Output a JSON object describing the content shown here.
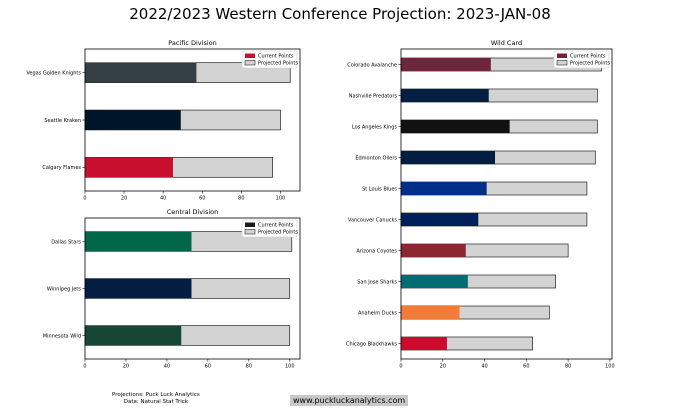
{
  "title": "2022/2023 Western Conference Projection: 2023-JAN-08",
  "footer": {
    "line1": "Projections: Puck Luck Analytics",
    "line2": "Data: Natural Stat Trick"
  },
  "site_label": "www.puckluckanalytics.com",
  "legend": {
    "current": "Current Points",
    "projected": "Projected Points"
  },
  "projected_color": "#d3d3d3",
  "chart_data": [
    {
      "type": "bar",
      "orientation": "horizontal",
      "title": "Pacific Division",
      "xlim": [
        0,
        110
      ],
      "xticks": [
        0,
        20,
        40,
        60,
        80,
        100
      ],
      "legend_position": "top-right",
      "legend_current_color": "#c8102e",
      "categories": [
        "Vegas Golden Knights",
        "Seattle Kraken",
        "Calgary Flames"
      ],
      "series": [
        {
          "name": "Current Points",
          "values": [
            57,
            49,
            45
          ],
          "colors": [
            "#333f42",
            "#001628",
            "#c8102e"
          ]
        },
        {
          "name": "Projected Points",
          "values": [
            105,
            100,
            96
          ]
        }
      ]
    },
    {
      "type": "bar",
      "orientation": "horizontal",
      "title": "Central Division",
      "xlim": [
        0,
        105
      ],
      "xticks": [
        0,
        20,
        40,
        60,
        80,
        100
      ],
      "legend_position": "top-right",
      "legend_current_color": "#1b1b1b",
      "categories": [
        "Dallas Stars",
        "Winnipeg Jets",
        "Minnesota Wild"
      ],
      "series": [
        {
          "name": "Current Points",
          "values": [
            52,
            52,
            47
          ],
          "colors": [
            "#006847",
            "#041e42",
            "#154734"
          ]
        },
        {
          "name": "Projected Points",
          "values": [
            101,
            100,
            100
          ]
        }
      ]
    },
    {
      "type": "bar",
      "orientation": "horizontal",
      "title": "Wild Card",
      "xlim": [
        0,
        101
      ],
      "xticks": [
        0,
        20,
        40,
        60,
        80,
        100
      ],
      "legend_position": "top-right",
      "legend_current_color": "#6f263d",
      "categories": [
        "Colorado Avalanche",
        "Nashville Predators",
        "Los Angeles Kings",
        "Edmonton Oilers",
        "St Louis Blues",
        "Vancouver Canucks",
        "Arizona Coyotes",
        "San Jose Sharks",
        "Anaheim Ducks",
        "Chicago Blackhawks"
      ],
      "series": [
        {
          "name": "Current Points",
          "values": [
            43,
            42,
            52,
            45,
            41,
            37,
            31,
            32,
            28,
            22
          ],
          "colors": [
            "#6f263d",
            "#041e42",
            "#111111",
            "#041e42",
            "#002f87",
            "#00205b",
            "#8c2633",
            "#006d75",
            "#f47a38",
            "#cf0a2c"
          ]
        },
        {
          "name": "Projected Points",
          "values": [
            96,
            94,
            94,
            93,
            89,
            89,
            80,
            74,
            71,
            63
          ]
        }
      ]
    }
  ]
}
